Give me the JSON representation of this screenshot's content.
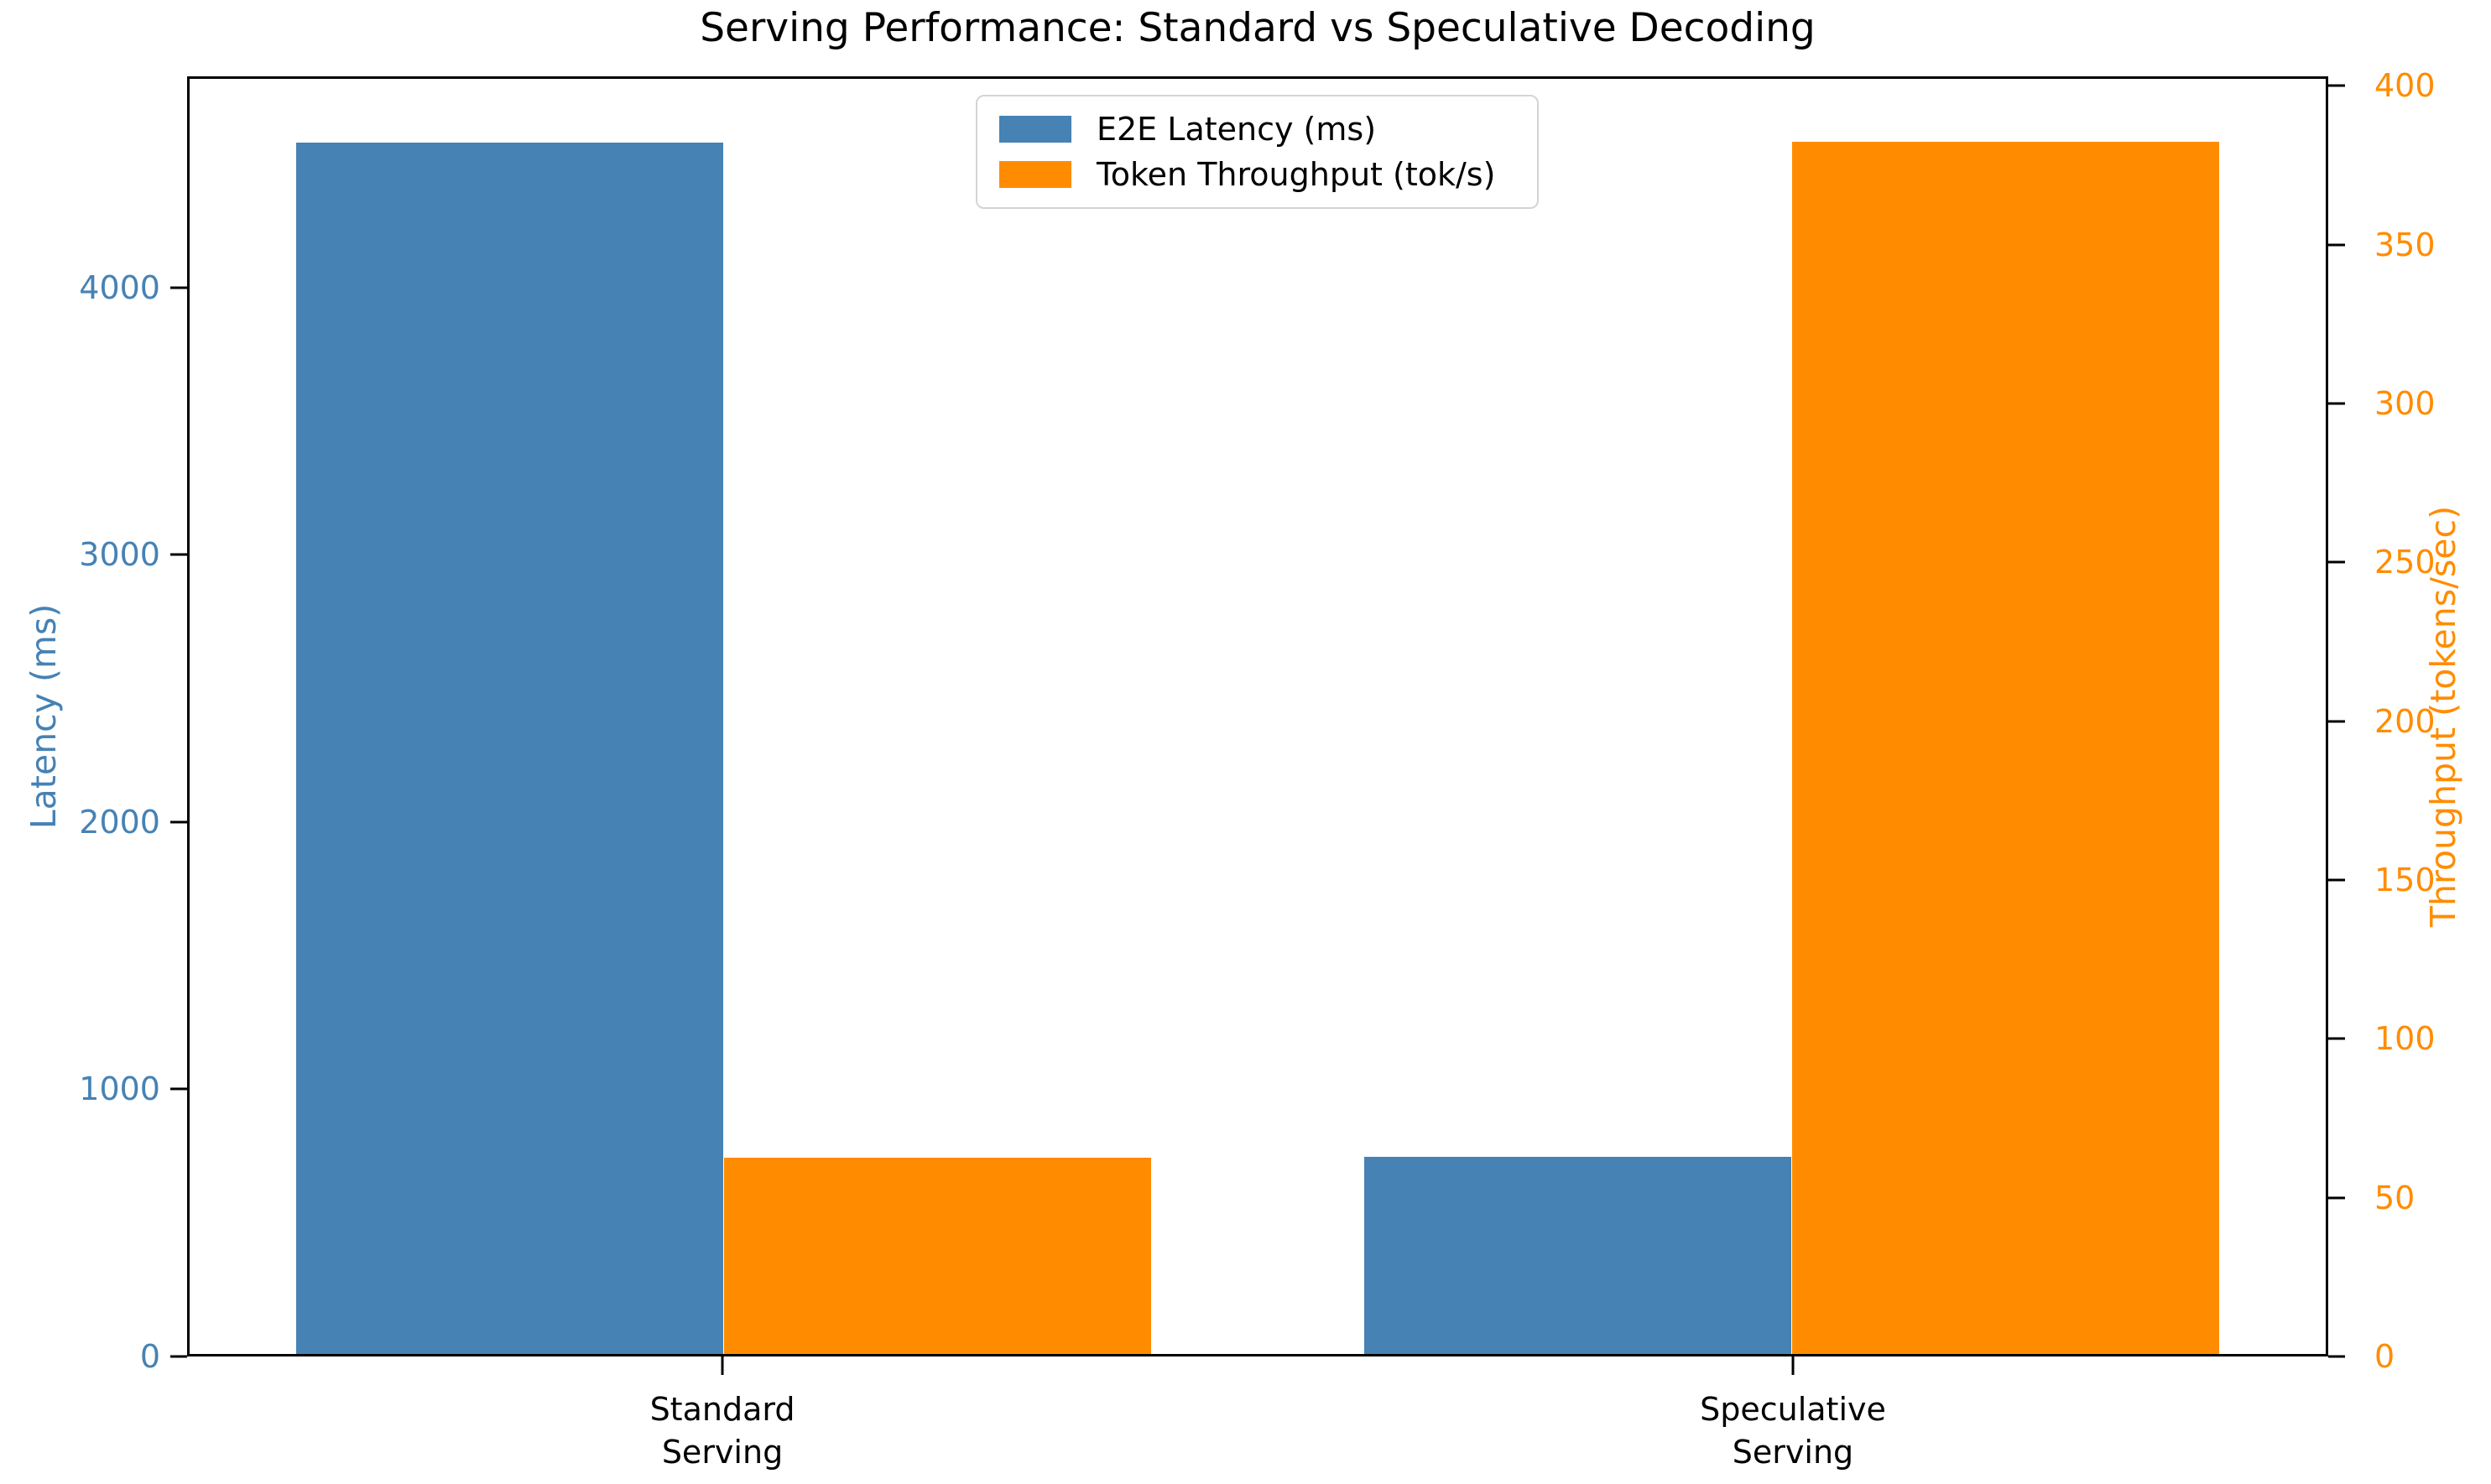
{
  "title": "Serving Performance: Standard vs Speculative Decoding",
  "legend": {
    "items": [
      {
        "label": "E2E Latency (ms)",
        "color": "#4682b4"
      },
      {
        "label": "Token Throughput (tok/s)",
        "color": "#ff8c00"
      }
    ]
  },
  "left_axis": {
    "label": "Latency (ms)",
    "color": "#4682b4",
    "ticks": [
      0,
      1000,
      2000,
      3000,
      4000
    ]
  },
  "right_axis": {
    "label": "Throughput (tokens/sec)",
    "color": "#ff8c00",
    "ticks": [
      0,
      50,
      100,
      150,
      200,
      250,
      300,
      350,
      400
    ]
  },
  "x_axis": {
    "categories": [
      [
        "Standard",
        "Serving"
      ],
      [
        "Speculative",
        "Serving"
      ]
    ]
  },
  "chart_data": {
    "type": "bar",
    "title": "Serving Performance: Standard vs Speculative Decoding",
    "categories": [
      "Standard Serving",
      "Speculative Serving"
    ],
    "series": [
      {
        "name": "E2E Latency (ms)",
        "axis": "left",
        "color": "#4682b4",
        "values": [
          4550,
          740
        ]
      },
      {
        "name": "Token Throughput (tok/s)",
        "axis": "right",
        "color": "#ff8c00",
        "values": [
          62,
          383
        ]
      }
    ],
    "left_ylabel": "Latency (ms)",
    "right_ylabel": "Throughput (tokens/sec)",
    "left_ylim": [
      0,
      4790
    ],
    "right_ylim": [
      0,
      403
    ],
    "left_tick_step": 1000,
    "right_tick_step": 50,
    "xlim": [
      -0.5,
      1.5
    ],
    "bar_width": 0.4,
    "grid": false,
    "legend_position": "upper center"
  }
}
